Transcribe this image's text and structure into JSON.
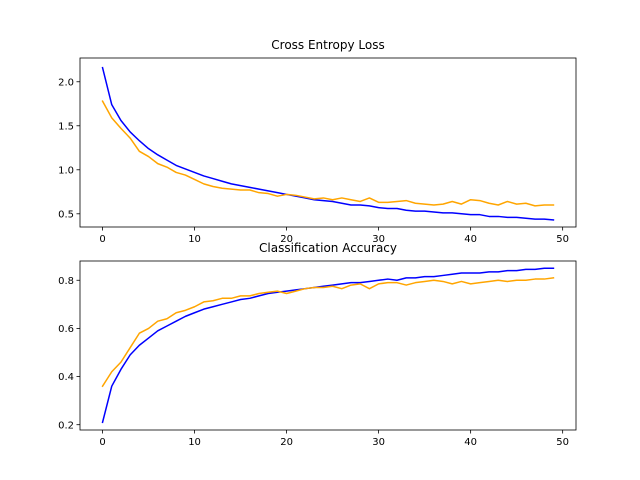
{
  "chart_data": [
    {
      "type": "line",
      "title": "Cross Entropy Loss",
      "xlabel": "",
      "ylabel": "",
      "xlim": [
        -2.45,
        51.45
      ],
      "ylim": [
        0.35,
        2.27
      ],
      "xticks": [
        0,
        10,
        20,
        30,
        40,
        50
      ],
      "yticks": [
        0.5,
        1.0,
        1.5,
        2.0
      ],
      "xtick_labels": [
        "0",
        "10",
        "20",
        "30",
        "40",
        "50"
      ],
      "ytick_labels": [
        "0.5",
        "1.0",
        "1.5",
        "2.0"
      ],
      "grid": false,
      "legend": "none",
      "series": [
        {
          "color": "#0000ff",
          "x": [
            0,
            1,
            2,
            3,
            4,
            5,
            6,
            7,
            8,
            9,
            10,
            11,
            12,
            13,
            14,
            15,
            16,
            17,
            18,
            19,
            20,
            21,
            22,
            23,
            24,
            25,
            26,
            27,
            28,
            29,
            30,
            31,
            32,
            33,
            34,
            35,
            36,
            37,
            38,
            39,
            40,
            41,
            42,
            43,
            44,
            45,
            46,
            47,
            48,
            49
          ],
          "values": [
            2.16,
            1.74,
            1.56,
            1.43,
            1.33,
            1.24,
            1.17,
            1.11,
            1.05,
            1.01,
            0.97,
            0.93,
            0.9,
            0.87,
            0.84,
            0.82,
            0.8,
            0.78,
            0.76,
            0.74,
            0.72,
            0.7,
            0.68,
            0.66,
            0.65,
            0.64,
            0.62,
            0.6,
            0.6,
            0.59,
            0.57,
            0.56,
            0.56,
            0.54,
            0.53,
            0.53,
            0.52,
            0.51,
            0.51,
            0.5,
            0.49,
            0.49,
            0.47,
            0.47,
            0.46,
            0.46,
            0.45,
            0.44,
            0.44,
            0.43
          ]
        },
        {
          "color": "#ffa500",
          "x": [
            0,
            1,
            2,
            3,
            4,
            5,
            6,
            7,
            8,
            9,
            10,
            11,
            12,
            13,
            14,
            15,
            16,
            17,
            18,
            19,
            20,
            21,
            22,
            23,
            24,
            25,
            26,
            27,
            28,
            29,
            30,
            31,
            32,
            33,
            34,
            35,
            36,
            37,
            38,
            39,
            40,
            41,
            42,
            43,
            44,
            45,
            46,
            47,
            48,
            49
          ],
          "values": [
            1.78,
            1.59,
            1.47,
            1.36,
            1.21,
            1.15,
            1.07,
            1.03,
            0.97,
            0.94,
            0.89,
            0.84,
            0.81,
            0.79,
            0.78,
            0.77,
            0.77,
            0.74,
            0.73,
            0.7,
            0.72,
            0.71,
            0.69,
            0.67,
            0.68,
            0.66,
            0.68,
            0.66,
            0.64,
            0.68,
            0.63,
            0.63,
            0.64,
            0.65,
            0.62,
            0.61,
            0.6,
            0.61,
            0.64,
            0.61,
            0.66,
            0.65,
            0.62,
            0.6,
            0.64,
            0.61,
            0.62,
            0.59,
            0.6,
            0.6
          ]
        }
      ]
    },
    {
      "type": "line",
      "title": "Classification Accuracy",
      "xlabel": "",
      "ylabel": "",
      "xlim": [
        -2.45,
        51.45
      ],
      "ylim": [
        0.178,
        0.88
      ],
      "xticks": [
        0,
        10,
        20,
        30,
        40,
        50
      ],
      "yticks": [
        0.2,
        0.4,
        0.6,
        0.8
      ],
      "xtick_labels": [
        "0",
        "10",
        "20",
        "30",
        "40",
        "50"
      ],
      "ytick_labels": [
        "0.2",
        "0.4",
        "0.6",
        "0.8"
      ],
      "grid": false,
      "legend": "none",
      "series": [
        {
          "color": "#0000ff",
          "x": [
            0,
            1,
            2,
            3,
            4,
            5,
            6,
            7,
            8,
            9,
            10,
            11,
            12,
            13,
            14,
            15,
            16,
            17,
            18,
            19,
            20,
            21,
            22,
            23,
            24,
            25,
            26,
            27,
            28,
            29,
            30,
            31,
            32,
            33,
            34,
            35,
            36,
            37,
            38,
            39,
            40,
            41,
            42,
            43,
            44,
            45,
            46,
            47,
            48,
            49
          ],
          "values": [
            0.21,
            0.36,
            0.43,
            0.49,
            0.53,
            0.56,
            0.59,
            0.61,
            0.63,
            0.65,
            0.665,
            0.68,
            0.69,
            0.7,
            0.71,
            0.72,
            0.725,
            0.735,
            0.745,
            0.75,
            0.755,
            0.76,
            0.765,
            0.77,
            0.775,
            0.78,
            0.785,
            0.79,
            0.79,
            0.795,
            0.8,
            0.805,
            0.8,
            0.81,
            0.81,
            0.815,
            0.815,
            0.82,
            0.825,
            0.83,
            0.83,
            0.83,
            0.835,
            0.835,
            0.84,
            0.84,
            0.845,
            0.845,
            0.85,
            0.85
          ]
        },
        {
          "color": "#ffa500",
          "x": [
            0,
            1,
            2,
            3,
            4,
            5,
            6,
            7,
            8,
            9,
            10,
            11,
            12,
            13,
            14,
            15,
            16,
            17,
            18,
            19,
            20,
            21,
            22,
            23,
            24,
            25,
            26,
            27,
            28,
            29,
            30,
            31,
            32,
            33,
            34,
            35,
            36,
            37,
            38,
            39,
            40,
            41,
            42,
            43,
            44,
            45,
            46,
            47,
            48,
            49
          ],
          "values": [
            0.36,
            0.42,
            0.46,
            0.52,
            0.58,
            0.6,
            0.63,
            0.64,
            0.665,
            0.675,
            0.69,
            0.71,
            0.715,
            0.725,
            0.725,
            0.735,
            0.735,
            0.745,
            0.75,
            0.755,
            0.745,
            0.755,
            0.765,
            0.77,
            0.77,
            0.775,
            0.765,
            0.78,
            0.785,
            0.765,
            0.785,
            0.79,
            0.79,
            0.78,
            0.79,
            0.795,
            0.8,
            0.795,
            0.785,
            0.795,
            0.785,
            0.79,
            0.795,
            0.8,
            0.795,
            0.8,
            0.8,
            0.805,
            0.805,
            0.81
          ]
        }
      ]
    }
  ]
}
